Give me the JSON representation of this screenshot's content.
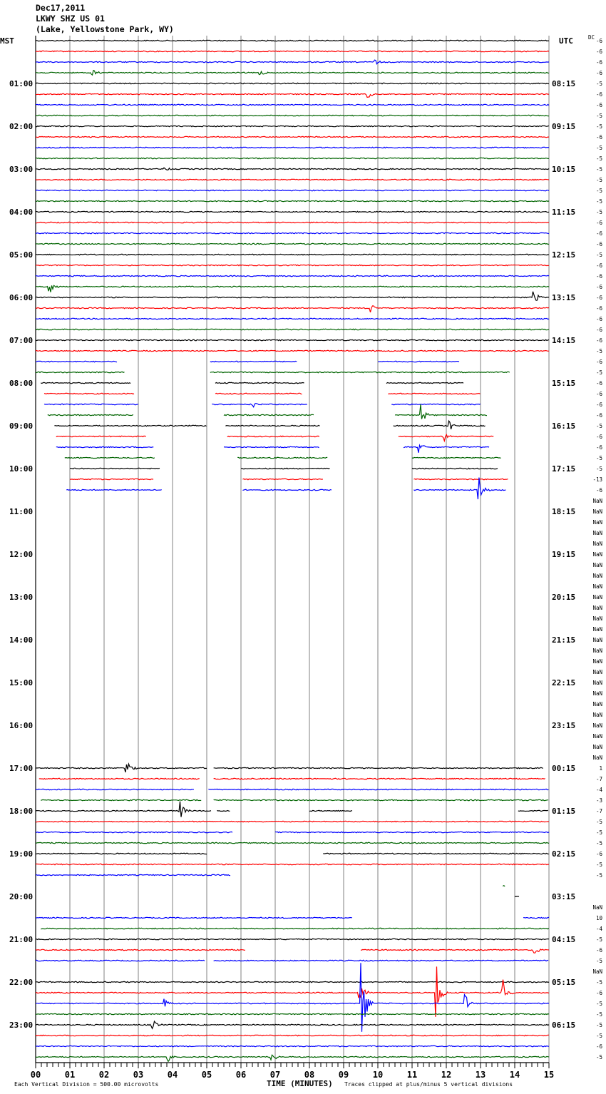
{
  "header": {
    "date": "Dec17,2011",
    "station": "LKWY SHZ US 01",
    "location": "(Lake, Yellowstone Park, WY)"
  },
  "chart_data": {
    "type": "line",
    "subtype": "helicorder",
    "left_axis_title": "MST",
    "right_axis_title": "UTC",
    "dc_label": "DC",
    "mst_hour_labels": [
      "01:00",
      "02:00",
      "03:00",
      "04:00",
      "05:00",
      "06:00",
      "07:00",
      "08:00",
      "09:00",
      "10:00",
      "11:00",
      "12:00",
      "13:00",
      "14:00",
      "15:00",
      "16:00",
      "17:00",
      "18:00",
      "19:00",
      "20:00",
      "21:00",
      "22:00",
      "23:00"
    ],
    "utc_hour_labels": [
      "08:15",
      "09:15",
      "10:15",
      "11:15",
      "12:15",
      "13:15",
      "14:15",
      "15:15",
      "16:15",
      "17:15",
      "18:15",
      "19:15",
      "20:15",
      "21:15",
      "22:15",
      "23:15",
      "00:15",
      "01:15",
      "02:15",
      "03:15",
      "04:15",
      "05:15",
      "06:15"
    ],
    "xlabel": "TIME (MINUTES)",
    "x_ticks": [
      "00",
      "01",
      "02",
      "03",
      "04",
      "05",
      "06",
      "07",
      "08",
      "09",
      "10",
      "11",
      "12",
      "13",
      "14",
      "15"
    ],
    "xlim": [
      0,
      15
    ],
    "rows_per_hour": 4,
    "row_count": 96,
    "trace_colors": [
      "#000000",
      "#ff0000",
      "#0000ff",
      "#006400"
    ],
    "grid_color": "#808080",
    "dc_offsets": [
      "-6",
      "-6",
      "-6",
      "-6",
      "-5",
      "-6",
      "-6",
      "-5",
      "-5",
      "-6",
      "-5",
      "-5",
      "-5",
      "-5",
      "-5",
      "-5",
      "-5",
      "-6",
      "-6",
      "-6",
      "-5",
      "-6",
      "-6",
      "-6",
      "-6",
      "-6",
      "-6",
      "-6",
      "-6",
      "-5",
      "-6",
      "-5",
      "-6",
      "-6",
      "-6",
      "-6",
      "-5",
      "-6",
      "-6",
      "-5",
      "-5",
      "-13",
      "-6",
      "NaN",
      "NaN",
      "NaN",
      "NaN",
      "NaN",
      "NaN",
      "NaN",
      "NaN",
      "NaN",
      "NaN",
      "NaN",
      "NaN",
      "NaN",
      "NaN",
      "NaN",
      "NaN",
      "NaN",
      "NaN",
      "NaN",
      "NaN",
      "NaN",
      "NaN",
      "NaN",
      "NaN",
      "NaN",
      "1",
      "-7",
      "-4",
      "-3",
      "-7",
      "-5",
      "-5",
      "-5",
      "-6",
      "-5",
      "-5",
      "",
      "",
      "NaN",
      "10",
      "-4",
      "-5",
      "-6",
      "-5",
      "NaN",
      "-5",
      "-6",
      "-5",
      "-5",
      "-5",
      "-5",
      "-6",
      "-5"
    ],
    "trace_segments_note": "rows not listed have data for the full 0-15 minutes",
    "trace_segments": {
      "30": [
        [
          0,
          2.4
        ],
        [
          5.1,
          7.65
        ],
        [
          10.0,
          12.4
        ]
      ],
      "31": [
        [
          0,
          2.6
        ],
        [
          5.1,
          13.85
        ]
      ],
      "32": [
        [
          0.15,
          2.8
        ],
        [
          5.25,
          7.85
        ],
        [
          10.25,
          12.5
        ]
      ],
      "33": [
        [
          0.25,
          2.9
        ],
        [
          5.25,
          7.8
        ],
        [
          10.3,
          13.0
        ]
      ],
      "34": [
        [
          0.25,
          3.0
        ],
        [
          5.15,
          7.95
        ],
        [
          10.4,
          13.0
        ]
      ],
      "35": [
        [
          0.35,
          2.85
        ],
        [
          5.5,
          8.15
        ],
        [
          10.5,
          13.2
        ]
      ],
      "36": [
        [
          0.55,
          5.0
        ],
        [
          5.55,
          8.3
        ],
        [
          10.45,
          13.15
        ]
      ],
      "37": [
        [
          0.6,
          3.25
        ],
        [
          5.6,
          8.3
        ],
        [
          10.6,
          13.4
        ]
      ],
      "38": [
        [
          0.6,
          3.45
        ],
        [
          5.5,
          8.3
        ],
        [
          10.75,
          13.25
        ]
      ],
      "39": [
        [
          0.85,
          3.5
        ],
        [
          5.9,
          8.55
        ],
        [
          11.0,
          13.6
        ]
      ],
      "40": [
        [
          1.0,
          3.65
        ],
        [
          6.0,
          8.6
        ],
        [
          11.0,
          13.5
        ]
      ],
      "41": [
        [
          1.0,
          3.45
        ],
        [
          6.05,
          8.4
        ],
        [
          11.05,
          13.8
        ]
      ],
      "42": [
        [
          0.9,
          3.7
        ],
        [
          6.05,
          8.65
        ],
        [
          11.05,
          13.75
        ]
      ],
      "43": [],
      "44": [],
      "45": [],
      "46": [],
      "47": [],
      "48": [],
      "49": [],
      "50": [],
      "51": [],
      "52": [],
      "53": [],
      "54": [],
      "55": [],
      "56": [],
      "57": [],
      "58": [],
      "59": [],
      "60": [],
      "61": [],
      "62": [],
      "63": [],
      "64": [],
      "65": [],
      "66": [],
      "67": [],
      "68": [
        [
          0,
          5.0
        ],
        [
          5.2,
          14.85
        ]
      ],
      "69": [
        [
          0.1,
          4.8
        ],
        [
          5.2,
          14.9
        ]
      ],
      "70": [
        [
          0,
          4.65
        ],
        [
          5.05,
          15
        ]
      ],
      "71": [
        [
          0.15,
          4.85
        ],
        [
          5.2,
          15
        ]
      ],
      "72": [
        [
          0,
          5.15
        ],
        [
          5.3,
          5.7
        ],
        [
          8.0,
          9.25
        ],
        [
          14.1,
          15
        ]
      ],
      "74": [
        [
          0,
          5.75
        ],
        [
          7.0,
          15
        ]
      ],
      "76": [
        [
          0,
          5.0
        ],
        [
          8.4,
          15
        ]
      ],
      "78": [
        [
          0,
          5.7
        ]
      ],
      "79": [
        [
          13.65,
          13.72
        ]
      ],
      "80": [
        [
          14.0,
          14.15
        ]
      ],
      "81": [],
      "82": [
        [
          0,
          9.25
        ],
        [
          14.25,
          15
        ]
      ],
      "83": [
        [
          0.15,
          15
        ]
      ],
      "85": [
        [
          0,
          6.15
        ],
        [
          9.5,
          15
        ]
      ],
      "86": [
        [
          0,
          4.95
        ],
        [
          5.2,
          15
        ]
      ],
      "87": []
    },
    "events": [
      {
        "row": 2,
        "minute": 9.9,
        "amp": 0.3
      },
      {
        "row": 3,
        "minute": 1.65,
        "amp": 0.4
      },
      {
        "row": 3,
        "minute": 6.55,
        "amp": 0.4
      },
      {
        "row": 5,
        "minute": 9.7,
        "amp": 0.5
      },
      {
        "row": 12,
        "minute": 3.75,
        "amp": 0.4
      },
      {
        "row": 23,
        "minute": 0.4,
        "amp": 0.8
      },
      {
        "row": 24,
        "minute": 14.55,
        "amp": 0.7
      },
      {
        "row": 25,
        "minute": 9.8,
        "amp": 0.6
      },
      {
        "row": 34,
        "minute": 6.35,
        "amp": 0.5
      },
      {
        "row": 35,
        "minute": 11.25,
        "amp": 1.2
      },
      {
        "row": 36,
        "minute": 12.1,
        "amp": 0.5
      },
      {
        "row": 37,
        "minute": 11.9,
        "amp": 0.6
      },
      {
        "row": 38,
        "minute": 11.2,
        "amp": 0.6
      },
      {
        "row": 42,
        "minute": 12.95,
        "amp": 1.5
      },
      {
        "row": 68,
        "minute": 2.65,
        "amp": 0.9
      },
      {
        "row": 72,
        "minute": 4.2,
        "amp": 1.2
      },
      {
        "row": 85,
        "minute": 14.55,
        "amp": 0.7
      },
      {
        "row": 89,
        "minute": 9.45,
        "amp": 1.3
      },
      {
        "row": 89,
        "minute": 11.7,
        "amp": 3.5
      },
      {
        "row": 89,
        "minute": 13.65,
        "amp": 1.5
      },
      {
        "row": 90,
        "minute": 9.5,
        "amp": 5
      },
      {
        "row": 90,
        "minute": 3.75,
        "amp": 0.6
      },
      {
        "row": 90,
        "minute": 12.55,
        "amp": 1.0
      },
      {
        "row": 92,
        "minute": 3.4,
        "amp": 0.6
      },
      {
        "row": 95,
        "minute": 3.85,
        "amp": 0.5
      },
      {
        "row": 95,
        "minute": 6.9,
        "amp": 0.6
      }
    ],
    "clip_divisions": 5
  },
  "footer": {
    "scale_note": "Each Vertical Division =  500.00 microvolts",
    "clip_note": "Traces clipped at plus/minus 5 vertical divisions"
  }
}
